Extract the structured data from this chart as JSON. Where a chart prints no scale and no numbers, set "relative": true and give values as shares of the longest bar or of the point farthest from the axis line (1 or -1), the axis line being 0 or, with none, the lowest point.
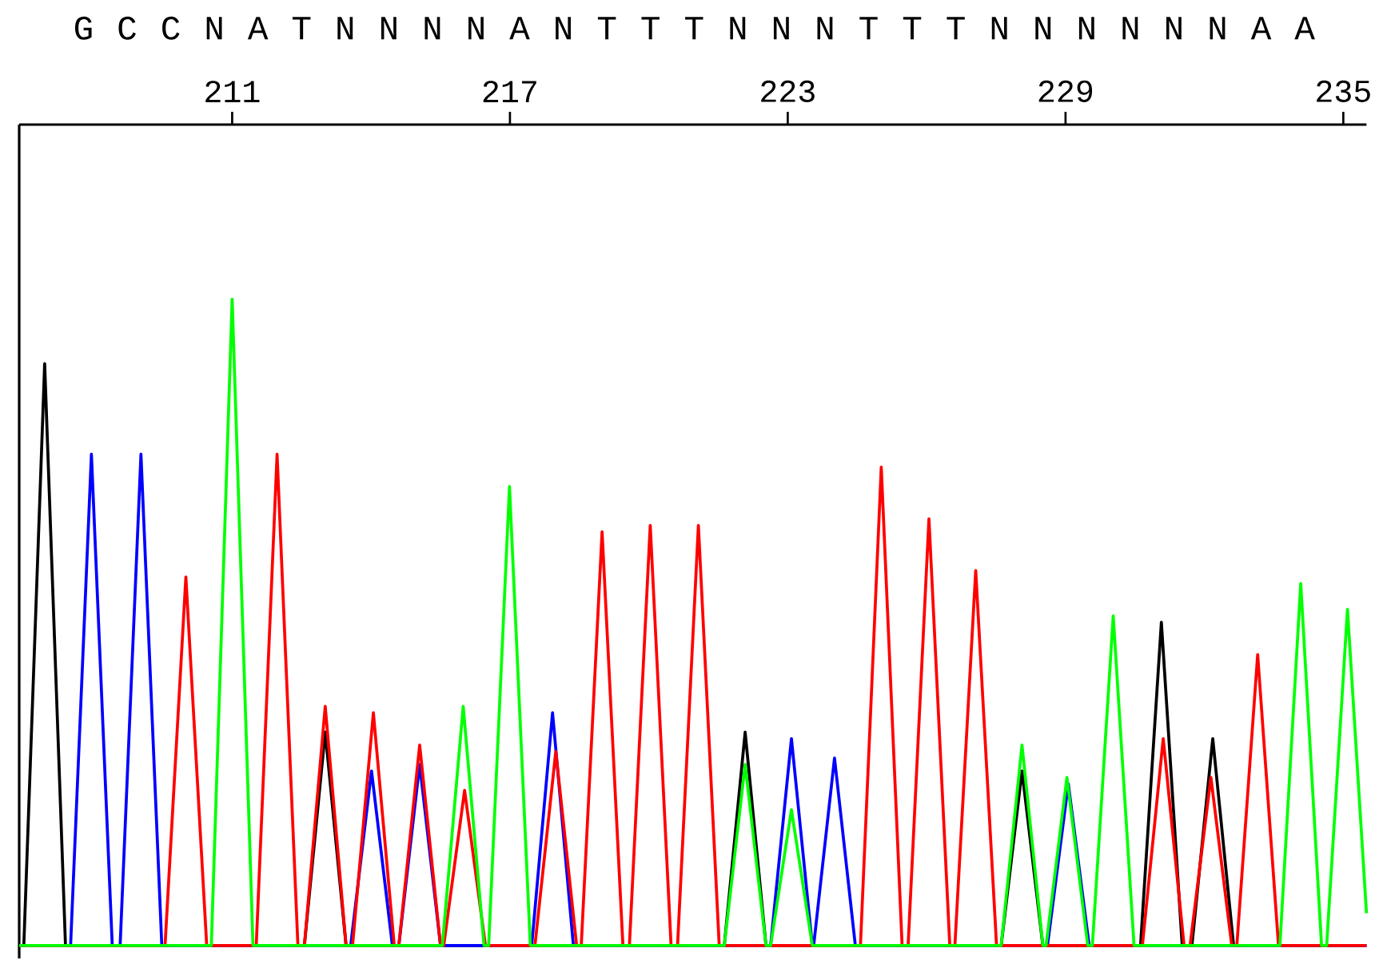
{
  "chart_data": {
    "type": "line",
    "relative": true,
    "marker": "none",
    "line_style": "solid",
    "xlim": [
      206.4,
      235.5
    ],
    "xticks": [
      211,
      217,
      223,
      229,
      235
    ],
    "annotations": [
      "G C C N A T N N N N A N T T T N N N T T T N N N N N N A A"
    ],
    "series": [
      {
        "color": "#000000",
        "x": [
          206.4,
          206.5,
          206.95,
          207.4,
          212.56,
          213.01,
          213.46,
          221.63,
          222.08,
          222.53,
          227.61,
          228.06,
          228.51,
          230.62,
          231.07,
          231.52,
          231.73,
          232.18,
          232.63,
          235.5
        ],
        "values": [
          0,
          0,
          0.9,
          0,
          0,
          0.33,
          0,
          0,
          0.33,
          0,
          0,
          0.27,
          0,
          0,
          0.5,
          0,
          0,
          0.32,
          0,
          0
        ]
      },
      {
        "color": "#0000ff",
        "x": [
          206.4,
          207.51,
          207.96,
          208.41,
          208.58,
          209.03,
          209.48,
          213.56,
          214.01,
          214.46,
          214.6,
          215.05,
          215.5,
          217.47,
          217.92,
          218.37,
          222.63,
          223.08,
          223.53,
          223.56,
          224.01,
          224.46,
          228.61,
          229.06,
          229.51,
          235.5
        ],
        "values": [
          0,
          0,
          0.76,
          0,
          0,
          0.76,
          0,
          0,
          0.27,
          0,
          0,
          0.28,
          0,
          0,
          0.36,
          0,
          0,
          0.32,
          0,
          0,
          0.29,
          0,
          0,
          0.25,
          0,
          0
        ]
      },
      {
        "color": "#ff0000",
        "x": [
          206.4,
          209.55,
          210.0,
          210.45,
          211.52,
          211.97,
          212.42,
          212.56,
          213.01,
          213.46,
          213.6,
          214.05,
          214.5,
          214.6,
          215.05,
          215.5,
          215.57,
          216.02,
          216.47,
          217.54,
          217.99,
          218.44,
          218.54,
          218.99,
          219.44,
          219.58,
          220.03,
          220.48,
          220.62,
          221.07,
          221.52,
          224.57,
          225.02,
          225.47,
          225.6,
          226.05,
          226.5,
          226.61,
          227.06,
          227.51,
          230.66,
          231.11,
          231.56,
          231.69,
          232.14,
          232.59,
          232.7,
          233.15,
          233.6,
          235.5
        ],
        "values": [
          0,
          0,
          0.57,
          0,
          0,
          0.76,
          0,
          0,
          0.37,
          0,
          0,
          0.36,
          0,
          0,
          0.31,
          0,
          0,
          0.24,
          0,
          0,
          0.3,
          0,
          0,
          0.64,
          0,
          0,
          0.65,
          0,
          0,
          0.65,
          0,
          0,
          0.74,
          0,
          0,
          0.66,
          0,
          0,
          0.58,
          0,
          0,
          0.32,
          0,
          0,
          0.26,
          0,
          0,
          0.45,
          0,
          0
        ]
      },
      {
        "color": "#00ff00",
        "x": [
          206.4,
          210.55,
          211.0,
          211.45,
          215.54,
          215.99,
          216.44,
          216.54,
          216.99,
          217.44,
          221.63,
          222.08,
          222.53,
          222.63,
          223.08,
          223.53,
          227.61,
          228.06,
          228.51,
          228.58,
          229.03,
          229.48,
          229.58,
          230.03,
          230.48,
          233.63,
          234.08,
          234.53,
          234.64,
          235.09,
          235.5
        ],
        "values": [
          0,
          0,
          1,
          0,
          0,
          0.37,
          0,
          0,
          0.71,
          0,
          0,
          0.28,
          0,
          0,
          0.21,
          0,
          0,
          0.31,
          0,
          0,
          0.26,
          0,
          0,
          0.51,
          0,
          0,
          0.56,
          0,
          0,
          0.52,
          0.05
        ]
      }
    ]
  }
}
